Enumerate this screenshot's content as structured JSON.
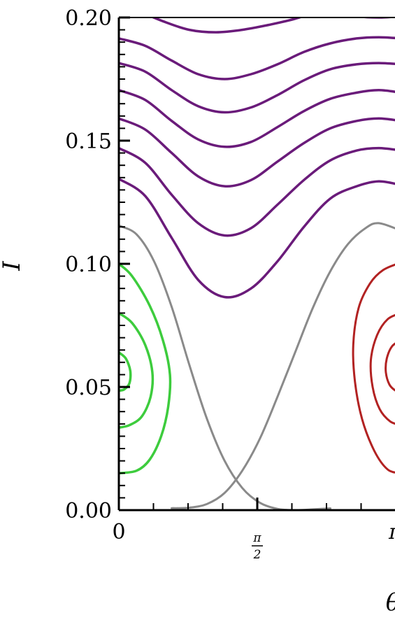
{
  "chart_data": {
    "type": "line",
    "title": "",
    "xlabel": "θ",
    "ylabel": "I",
    "xlim": [
      0,
      3.2
    ],
    "ylim": [
      0,
      0.2
    ],
    "grid": false,
    "legend": "none",
    "x_ticks": [
      {
        "value": 0,
        "label": "0"
      },
      {
        "value": 1.5708,
        "label_num": "π",
        "label_den": "2"
      },
      {
        "value": 3.1416,
        "label": "π"
      }
    ],
    "y_ticks": [
      {
        "value": 0.0,
        "label": "0.00"
      },
      {
        "value": 0.05,
        "label": "0.05"
      },
      {
        "value": 0.1,
        "label": "0.10"
      },
      {
        "value": 0.15,
        "label": "0.15"
      },
      {
        "value": 0.2,
        "label": "0.20"
      }
    ],
    "colors": {
      "open_orbits": "#6a1b7a",
      "separatrix": "#8a8a8a",
      "left_island": "#3dcc3d",
      "right_island": "#b22222"
    },
    "open_orbits": [
      {
        "points": [
          [
            0.0,
            0.1345
          ],
          [
            0.3,
            0.1275
          ],
          [
            0.6,
            0.1105
          ],
          [
            0.9,
            0.0935
          ],
          [
            1.2,
            0.0865
          ],
          [
            1.5,
            0.09
          ],
          [
            1.8,
            0.101
          ],
          [
            2.1,
            0.115
          ],
          [
            2.4,
            0.1265
          ],
          [
            2.7,
            0.1315
          ],
          [
            2.95,
            0.1335
          ],
          [
            3.2,
            0.132
          ]
        ]
      },
      {
        "points": [
          [
            0.0,
            0.147
          ],
          [
            0.3,
            0.141
          ],
          [
            0.6,
            0.128
          ],
          [
            0.9,
            0.1165
          ],
          [
            1.2,
            0.1115
          ],
          [
            1.5,
            0.1145
          ],
          [
            1.8,
            0.124
          ],
          [
            2.1,
            0.134
          ],
          [
            2.4,
            0.142
          ],
          [
            2.7,
            0.146
          ],
          [
            2.95,
            0.147
          ],
          [
            3.2,
            0.146
          ]
        ]
      },
      {
        "points": [
          [
            0.0,
            0.159
          ],
          [
            0.3,
            0.1545
          ],
          [
            0.6,
            0.145
          ],
          [
            0.9,
            0.1355
          ],
          [
            1.2,
            0.1315
          ],
          [
            1.5,
            0.134
          ],
          [
            1.8,
            0.1415
          ],
          [
            2.1,
            0.149
          ],
          [
            2.4,
            0.155
          ],
          [
            2.7,
            0.158
          ],
          [
            2.95,
            0.159
          ],
          [
            3.2,
            0.158
          ]
        ]
      },
      {
        "points": [
          [
            0.0,
            0.1705
          ],
          [
            0.3,
            0.1665
          ],
          [
            0.6,
            0.158
          ],
          [
            0.9,
            0.1505
          ],
          [
            1.2,
            0.1475
          ],
          [
            1.5,
            0.1495
          ],
          [
            1.8,
            0.1555
          ],
          [
            2.1,
            0.162
          ],
          [
            2.4,
            0.167
          ],
          [
            2.7,
            0.1695
          ],
          [
            2.95,
            0.1705
          ],
          [
            3.2,
            0.1695
          ]
        ]
      },
      {
        "points": [
          [
            0.0,
            0.1815
          ],
          [
            0.3,
            0.178
          ],
          [
            0.6,
            0.1705
          ],
          [
            0.9,
            0.164
          ],
          [
            1.2,
            0.1615
          ],
          [
            1.5,
            0.1635
          ],
          [
            1.8,
            0.1685
          ],
          [
            2.1,
            0.1745
          ],
          [
            2.4,
            0.179
          ],
          [
            2.7,
            0.181
          ],
          [
            2.95,
            0.1815
          ],
          [
            3.2,
            0.181
          ]
        ]
      },
      {
        "points": [
          [
            0.0,
            0.1915
          ],
          [
            0.3,
            0.1885
          ],
          [
            0.6,
            0.1825
          ],
          [
            0.9,
            0.177
          ],
          [
            1.2,
            0.175
          ],
          [
            1.5,
            0.177
          ],
          [
            1.8,
            0.181
          ],
          [
            2.1,
            0.186
          ],
          [
            2.4,
            0.1895
          ],
          [
            2.7,
            0.1915
          ],
          [
            2.95,
            0.192
          ],
          [
            3.2,
            0.1915
          ]
        ]
      },
      {
        "points": [
          [
            0.2,
            0.203
          ],
          [
            0.5,
            0.1985
          ],
          [
            0.8,
            0.195
          ],
          [
            1.1,
            0.194
          ],
          [
            1.4,
            0.195
          ],
          [
            1.7,
            0.197
          ],
          [
            2.0,
            0.1995
          ],
          [
            2.3,
            0.203
          ]
        ]
      },
      {
        "points": [
          [
            2.4,
            0.2025
          ],
          [
            2.7,
            0.2005
          ],
          [
            2.95,
            0.2
          ],
          [
            3.2,
            0.2005
          ]
        ]
      }
    ],
    "separatrix": [
      {
        "points": [
          [
            0.0,
            0.1155
          ],
          [
            0.2,
            0.112
          ],
          [
            0.4,
            0.101
          ],
          [
            0.6,
            0.0825
          ],
          [
            0.8,
            0.059
          ],
          [
            1.0,
            0.037
          ],
          [
            1.2,
            0.02
          ],
          [
            1.4,
            0.009
          ],
          [
            1.6,
            0.003
          ],
          [
            1.8,
            0.0005
          ],
          [
            2.0,
            0.0
          ],
          [
            2.2,
            0.0003
          ],
          [
            2.4,
            0.0007
          ]
        ]
      },
      {
        "points": [
          [
            0.6,
            0.0008
          ],
          [
            0.8,
            0.001
          ],
          [
            1.0,
            0.0025
          ],
          [
            1.2,
            0.007
          ],
          [
            1.4,
            0.016
          ],
          [
            1.6,
            0.029
          ],
          [
            1.8,
            0.046
          ],
          [
            2.0,
            0.064
          ],
          [
            2.2,
            0.082
          ],
          [
            2.4,
            0.097
          ],
          [
            2.6,
            0.108
          ],
          [
            2.8,
            0.1145
          ],
          [
            2.95,
            0.1165
          ],
          [
            3.2,
            0.1135
          ]
        ]
      }
    ],
    "left_islands": [
      {
        "points": [
          [
            0.0,
            0.1
          ],
          [
            0.15,
            0.095
          ],
          [
            0.35,
            0.083
          ],
          [
            0.5,
            0.069
          ],
          [
            0.58,
            0.055
          ],
          [
            0.56,
            0.042
          ],
          [
            0.48,
            0.03
          ],
          [
            0.35,
            0.0205
          ],
          [
            0.2,
            0.016
          ],
          [
            0.0,
            0.015
          ]
        ]
      },
      {
        "points": [
          [
            0.0,
            0.08
          ],
          [
            0.15,
            0.076
          ],
          [
            0.3,
            0.067
          ],
          [
            0.38,
            0.056
          ],
          [
            0.36,
            0.046
          ],
          [
            0.26,
            0.038
          ],
          [
            0.12,
            0.0345
          ],
          [
            0.0,
            0.0335
          ]
        ]
      },
      {
        "points": [
          [
            0.0,
            0.064
          ],
          [
            0.08,
            0.0615
          ],
          [
            0.13,
            0.0565
          ],
          [
            0.12,
            0.0515
          ],
          [
            0.06,
            0.049
          ],
          [
            0.0,
            0.0485
          ]
        ]
      }
    ],
    "right_islands": [
      {
        "points": [
          [
            3.2,
            0.1005
          ],
          [
            3.0,
            0.0975
          ],
          [
            2.85,
            0.092
          ],
          [
            2.72,
            0.082
          ],
          [
            2.66,
            0.067
          ],
          [
            2.68,
            0.052
          ],
          [
            2.76,
            0.037
          ],
          [
            2.9,
            0.024
          ],
          [
            3.05,
            0.0165
          ],
          [
            3.2,
            0.015
          ]
        ]
      },
      {
        "points": [
          [
            3.2,
            0.08
          ],
          [
            3.05,
            0.0775
          ],
          [
            2.93,
            0.071
          ],
          [
            2.86,
            0.061
          ],
          [
            2.88,
            0.05
          ],
          [
            2.96,
            0.041
          ],
          [
            3.08,
            0.036
          ],
          [
            3.2,
            0.0345
          ]
        ]
      },
      {
        "points": [
          [
            3.2,
            0.069
          ],
          [
            3.1,
            0.0665
          ],
          [
            3.04,
            0.0615
          ],
          [
            3.03,
            0.056
          ],
          [
            3.07,
            0.051
          ],
          [
            3.14,
            0.0485
          ],
          [
            3.2,
            0.048
          ]
        ]
      }
    ]
  }
}
